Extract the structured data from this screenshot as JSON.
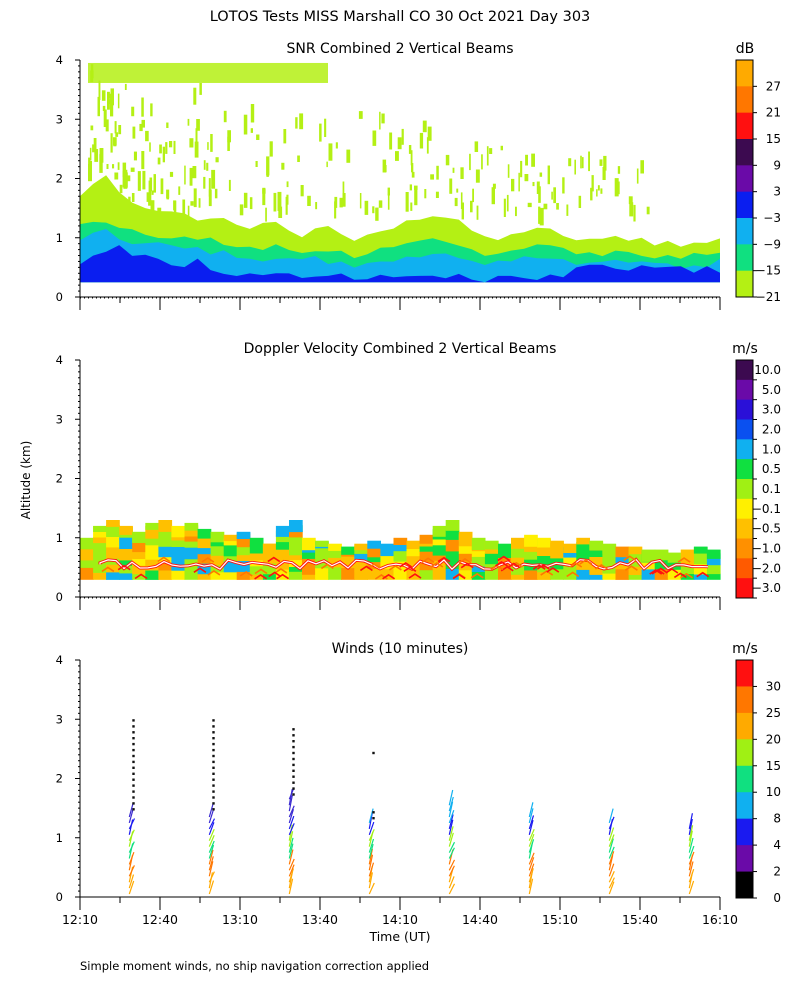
{
  "figure": {
    "title": "LOTOS Tests MISS Marshall CO  30 Oct 2021 Day 303",
    "ylabel": "Altitude (km)",
    "xlabel": "Time (UT)",
    "footnote": "Simple moment winds, no ship navigation correction applied",
    "x_ticks": [
      "12:10",
      "12:40",
      "13:10",
      "13:40",
      "14:10",
      "14:40",
      "15:10",
      "15:40",
      "16:10"
    ],
    "y_ticks": [
      "0",
      "1",
      "2",
      "3",
      "4"
    ]
  },
  "chart_data": [
    {
      "type": "heatmap",
      "title": "SNR Combined 2 Vertical Beams",
      "colorbar_unit": "dB",
      "colorbar_labels": [
        "27",
        "21",
        "15",
        "9",
        "3",
        "−3",
        "−9",
        "−15",
        "−21"
      ],
      "colorbar_colors": [
        "#ffaa00",
        "#ff7700",
        "#ff1010",
        "#3c0a50",
        "#6a0aa8",
        "#0a1ef0",
        "#10b0f0",
        "#10e080",
        "#b4f014"
      ],
      "xlim_hours": [
        12.1667,
        16.1667
      ],
      "ylim_km": [
        0,
        4
      ],
      "layers": [
        {
          "color": "#b4f014",
          "top": [
            1.7,
            1.9,
            2.1,
            1.8,
            1.6,
            1.5,
            1.5,
            1.4,
            1.4,
            1.3,
            1.35,
            1.3,
            1.2,
            1.2,
            1.25,
            1.3,
            1.1,
            1.05,
            1.15,
            1.2,
            1.1,
            1.0,
            1.0,
            1.05,
            1.2,
            1.3,
            1.25,
            1.4,
            1.35,
            1.3,
            1.1,
            1.05,
            1.0,
            1.0,
            1.1,
            1.2,
            1.15,
            1.05,
            1.0,
            0.95,
            1.0,
            1.05,
            1.0,
            0.95,
            0.9,
            0.9,
            0.85,
            0.95,
            0.9,
            1.0
          ]
        },
        {
          "color": "#10e080",
          "top": [
            1.2,
            1.25,
            1.3,
            1.2,
            1.15,
            1.1,
            1.05,
            1.0,
            1.0,
            0.95,
            0.95,
            0.9,
            0.85,
            0.85,
            0.8,
            0.85,
            0.8,
            0.75,
            0.8,
            0.8,
            0.75,
            0.7,
            0.75,
            0.8,
            0.8,
            0.85,
            0.9,
            0.95,
            0.9,
            0.85,
            0.8,
            0.75,
            0.75,
            0.8,
            0.85,
            0.9,
            0.85,
            0.8,
            0.75,
            0.7,
            0.75,
            0.8,
            0.75,
            0.7,
            0.7,
            0.65,
            0.65,
            0.7,
            0.7,
            0.75
          ]
        },
        {
          "color": "#10b0f0",
          "top": [
            1.0,
            1.05,
            1.1,
            1.0,
            0.95,
            0.95,
            0.9,
            0.85,
            0.8,
            0.8,
            0.75,
            0.75,
            0.7,
            0.7,
            0.65,
            0.7,
            0.65,
            0.6,
            0.65,
            0.6,
            0.6,
            0.55,
            0.6,
            0.6,
            0.65,
            0.7,
            0.7,
            0.75,
            0.7,
            0.7,
            0.65,
            0.6,
            0.6,
            0.65,
            0.7,
            0.7,
            0.65,
            0.65,
            0.6,
            0.55,
            0.6,
            0.6,
            0.6,
            0.55,
            0.55,
            0.55,
            0.5,
            0.55,
            0.55,
            0.6
          ]
        },
        {
          "color": "#0a1ef0",
          "top": [
            0.6,
            0.75,
            0.8,
            0.9,
            0.75,
            0.7,
            0.65,
            0.55,
            0.5,
            0.6,
            0.45,
            0.4,
            0.4,
            0.35,
            0.35,
            0.4,
            0.35,
            0.3,
            0.35,
            0.3,
            0.35,
            0.3,
            0.3,
            0.35,
            0.3,
            0.3,
            0.35,
            0.3,
            0.3,
            0.35,
            0.3,
            0.3,
            0.3,
            0.35,
            0.3,
            0.3,
            0.35,
            0.3,
            0.5,
            0.55,
            0.5,
            0.45,
            0.5,
            0.55,
            0.5,
            0.45,
            0.5,
            0.45,
            0.5,
            0.45
          ]
        }
      ],
      "upper_echo_km": [
        1.5,
        4.0
      ]
    },
    {
      "type": "heatmap",
      "title": "Doppler Velocity Combined 2 Vertical Beams",
      "colorbar_unit": "m/s",
      "colorbar_labels": [
        "10.0",
        "5.0",
        "3.0",
        "2.0",
        "1.0",
        "0.5",
        "0.1",
        "−0.1",
        "−0.5",
        "−1.0",
        "−2.0",
        "−3.0"
      ],
      "colorbar_colors": [
        "#3c0a50",
        "#6a0aa8",
        "#2a10d8",
        "#0a50f0",
        "#10b0f0",
        "#10e040",
        "#a0f014",
        "#fff000",
        "#ffc000",
        "#ff9000",
        "#ff5a00",
        "#ff1010"
      ],
      "xlim_hours": [
        12.1667,
        16.1667
      ],
      "ylim_km": [
        0,
        4
      ],
      "echo_top_km": [
        1.0,
        1.2,
        1.3,
        1.2,
        1.1,
        1.25,
        1.3,
        1.2,
        1.25,
        1.15,
        1.1,
        1.05,
        1.1,
        1.0,
        0.9,
        1.2,
        1.3,
        1.0,
        0.95,
        0.9,
        0.85,
        0.9,
        0.95,
        0.9,
        1.0,
        0.95,
        1.05,
        1.2,
        1.3,
        1.1,
        1.0,
        0.95,
        0.9,
        1.0,
        1.05,
        1.0,
        0.95,
        0.9,
        1.0,
        0.95,
        0.9,
        0.85,
        0.85,
        0.8,
        0.8,
        0.75,
        0.8,
        0.85,
        0.8,
        0.8
      ]
    },
    {
      "type": "scatter",
      "title": "Winds (10 minutes)",
      "colorbar_unit": "m/s",
      "colorbar_labels": [
        "30",
        "25",
        "20",
        "15",
        "10",
        "8",
        "4",
        "2",
        "0"
      ],
      "colorbar_colors": [
        "#ff1010",
        "#ff7700",
        "#ffaa00",
        "#a0f014",
        "#10e080",
        "#10b0f0",
        "#1a1af0",
        "#6a0aa8",
        "#000000"
      ],
      "xlim_hours": [
        12.1667,
        16.1667
      ],
      "ylim_km": [
        0,
        4
      ],
      "profile_times_hours": [
        12.5,
        13.0,
        13.5,
        14.0,
        14.5,
        15.0,
        15.5,
        16.0
      ],
      "profile_max_km": [
        1.45,
        1.45,
        1.7,
        1.3,
        1.65,
        1.35,
        1.3,
        1.2
      ],
      "marker_tops_km": [
        3.05,
        3.05,
        2.95,
        2.55,
        null,
        null,
        null,
        null
      ]
    }
  ]
}
